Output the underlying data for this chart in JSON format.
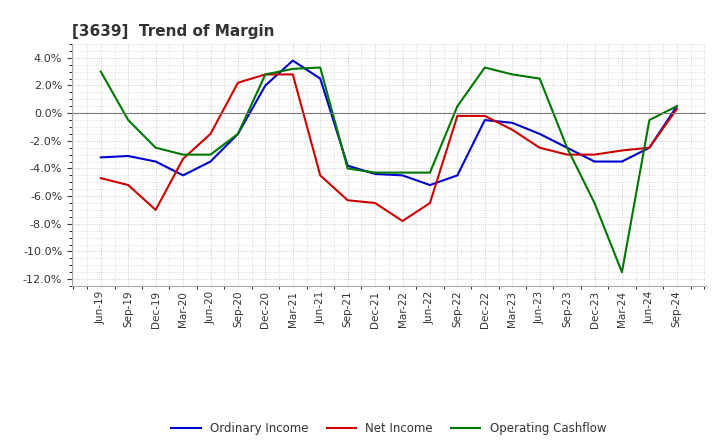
{
  "title": "[3639]  Trend of Margin",
  "x_labels": [
    "Jun-19",
    "Sep-19",
    "Dec-19",
    "Mar-20",
    "Jun-20",
    "Sep-20",
    "Dec-20",
    "Mar-21",
    "Jun-21",
    "Sep-21",
    "Dec-21",
    "Mar-22",
    "Jun-22",
    "Sep-22",
    "Dec-22",
    "Mar-23",
    "Jun-23",
    "Sep-23",
    "Dec-23",
    "Mar-24",
    "Jun-24",
    "Sep-24"
  ],
  "ordinary_income": [
    -3.2,
    -3.1,
    -3.5,
    -4.5,
    -3.5,
    -1.5,
    2.0,
    3.8,
    2.5,
    -3.8,
    -4.4,
    -4.5,
    -5.2,
    -4.5,
    -0.5,
    -0.7,
    -1.5,
    -2.5,
    -3.5,
    -3.5,
    -2.5,
    0.5
  ],
  "net_income": [
    -4.7,
    -5.2,
    -7.0,
    -3.3,
    -1.5,
    2.2,
    2.8,
    2.8,
    -4.5,
    -6.3,
    -6.5,
    -7.8,
    -6.5,
    -0.2,
    -0.2,
    -1.2,
    -2.5,
    -3.0,
    -3.0,
    -2.7,
    -2.5,
    0.3
  ],
  "operating_cashflow": [
    3.0,
    -0.5,
    -2.5,
    -3.0,
    -3.0,
    -1.5,
    2.8,
    3.2,
    3.3,
    -4.0,
    -4.3,
    -4.3,
    -4.3,
    0.5,
    3.3,
    2.8,
    2.5,
    -2.5,
    -6.5,
    -11.5,
    -0.5,
    0.5
  ],
  "ylim": [
    -12.5,
    5.0
  ],
  "yticks": [
    -12.0,
    -10.0,
    -8.0,
    -6.0,
    -4.0,
    -2.0,
    0.0,
    2.0,
    4.0
  ],
  "colors": {
    "ordinary_income": "#0000cc",
    "net_income": "#cc0000",
    "operating_cashflow": "#007700"
  },
  "background_color": "#ffffff",
  "plot_bg_color": "#ffffff",
  "grid_color": "#bbbbbb",
  "title_color": "#333333",
  "legend": [
    "Ordinary Income",
    "Net Income",
    "Operating Cashflow"
  ]
}
